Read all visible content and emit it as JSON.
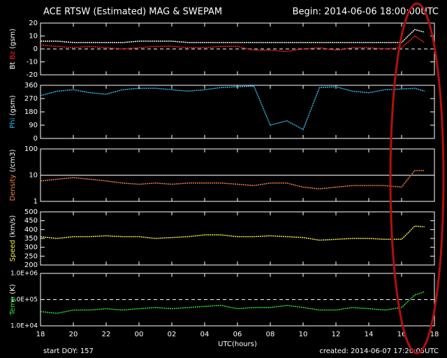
{
  "header": {
    "title": "ACE RTSW (Estimated) MAG & SWEPAM",
    "begin": "Begin: 2014-06-06 18:00:00UTC"
  },
  "footer": {
    "start": "start DOY: 157",
    "created": "created: 2014-06-07 17:20:05UTC"
  },
  "chart_data": [
    {
      "type": "line",
      "ylabel": "(gsm)",
      "x": [
        18,
        19,
        20,
        21,
        22,
        23,
        24,
        25,
        26,
        27,
        28,
        29,
        30,
        31,
        32,
        33,
        34,
        35,
        36,
        37,
        38,
        39,
        40,
        40.8,
        41.4
      ],
      "series": [
        {
          "name": "Bt",
          "color": "#ffffff",
          "values": [
            6,
            6,
            5,
            5,
            5,
            5,
            6,
            6,
            6,
            5,
            5,
            5,
            5,
            5,
            5,
            5,
            5,
            5,
            5,
            5,
            5,
            5,
            5,
            15,
            13
          ]
        },
        {
          "name": "Bz",
          "color": "#ff2020",
          "values": [
            3,
            2,
            1,
            2,
            1,
            0,
            1,
            2,
            2,
            1,
            1,
            2,
            2,
            -1,
            -1,
            -2,
            0,
            1,
            -1,
            1,
            1,
            0,
            1,
            10,
            5
          ]
        }
      ],
      "xlim": [
        18,
        42
      ],
      "xticks": [
        18,
        20,
        22,
        {
          "value": 24,
          "label": "00"
        },
        {
          "value": 26,
          "label": "02"
        },
        {
          "value": 28,
          "label": "04"
        },
        {
          "value": 30,
          "label": "06"
        },
        {
          "value": 32,
          "label": "08"
        },
        {
          "value": 34,
          "label": "10"
        },
        {
          "value": 36,
          "label": "12"
        },
        {
          "value": 38,
          "label": "14"
        },
        {
          "value": 40,
          "label": "16"
        },
        {
          "value": 42,
          "label": "18"
        }
      ],
      "ylim": [
        -20,
        20
      ],
      "yticks": [
        -20,
        -10,
        0,
        10,
        20
      ],
      "reference_line": {
        "value": 0,
        "style": "dashed"
      }
    },
    {
      "type": "line",
      "ylabel": "(gsm)",
      "x": [
        18,
        19,
        20,
        21,
        22,
        23,
        24,
        25,
        26,
        27,
        28,
        29,
        30,
        31,
        32,
        33,
        34,
        35,
        36,
        37,
        38,
        39,
        40,
        40.8,
        41.4
      ],
      "series": [
        {
          "name": "Phi",
          "color": "#30b8e8",
          "values": [
            290,
            320,
            330,
            310,
            300,
            330,
            340,
            340,
            330,
            320,
            330,
            345,
            350,
            355,
            90,
            120,
            60,
            345,
            350,
            320,
            310,
            330,
            335,
            340,
            320
          ]
        }
      ],
      "xlim": [
        18,
        42
      ],
      "xticks": [
        18,
        20,
        22,
        {
          "value": 24,
          "label": "00"
        },
        {
          "value": 26,
          "label": "02"
        },
        {
          "value": 28,
          "label": "04"
        },
        {
          "value": 30,
          "label": "06"
        },
        {
          "value": 32,
          "label": "08"
        },
        {
          "value": 34,
          "label": "10"
        },
        {
          "value": 36,
          "label": "12"
        },
        {
          "value": 38,
          "label": "14"
        },
        {
          "value": 40,
          "label": "16"
        },
        {
          "value": 42,
          "label": "18"
        }
      ],
      "ylim": [
        0,
        360
      ],
      "yticks": [
        0,
        90,
        180,
        270,
        360
      ]
    },
    {
      "type": "line",
      "ylabel": "(/cm3)",
      "log": true,
      "x": [
        18,
        19,
        20,
        21,
        22,
        23,
        24,
        25,
        26,
        27,
        28,
        29,
        30,
        31,
        32,
        33,
        34,
        35,
        36,
        37,
        38,
        39,
        40,
        40.8,
        41.4
      ],
      "series": [
        {
          "name": "Density",
          "color": "#f08040",
          "values": [
            6,
            7,
            8,
            7,
            6,
            5,
            4.5,
            5,
            4.5,
            5,
            5,
            5,
            4.5,
            4,
            5,
            5,
            3.5,
            3,
            3.5,
            4,
            4,
            4,
            3.5,
            15,
            15
          ]
        }
      ],
      "xlim": [
        18,
        42
      ],
      "xticks": [
        18,
        20,
        22,
        {
          "value": 24,
          "label": "00"
        },
        {
          "value": 26,
          "label": "02"
        },
        {
          "value": 28,
          "label": "04"
        },
        {
          "value": 30,
          "label": "06"
        },
        {
          "value": 32,
          "label": "08"
        },
        {
          "value": 34,
          "label": "10"
        },
        {
          "value": 36,
          "label": "12"
        },
        {
          "value": 38,
          "label": "14"
        },
        {
          "value": 40,
          "label": "16"
        },
        {
          "value": 42,
          "label": "18"
        }
      ],
      "ylim": [
        1,
        100
      ],
      "yticks": [
        1,
        10,
        100
      ],
      "reference_line": {
        "value": 10,
        "style": "solid"
      }
    },
    {
      "type": "line",
      "ylabel": "(km/s)",
      "x": [
        18,
        19,
        20,
        21,
        22,
        23,
        24,
        25,
        26,
        27,
        28,
        29,
        30,
        31,
        32,
        33,
        34,
        35,
        36,
        37,
        38,
        39,
        40,
        40.8,
        41.4
      ],
      "series": [
        {
          "name": "Speed",
          "color": "#f0f040",
          "values": [
            360,
            350,
            360,
            360,
            365,
            360,
            360,
            350,
            355,
            360,
            370,
            370,
            360,
            360,
            365,
            360,
            355,
            340,
            345,
            350,
            350,
            345,
            345,
            420,
            415
          ]
        }
      ],
      "xlim": [
        18,
        42
      ],
      "xticks": [
        18,
        20,
        22,
        {
          "value": 24,
          "label": "00"
        },
        {
          "value": 26,
          "label": "02"
        },
        {
          "value": 28,
          "label": "04"
        },
        {
          "value": 30,
          "label": "06"
        },
        {
          "value": 32,
          "label": "08"
        },
        {
          "value": 34,
          "label": "10"
        },
        {
          "value": 36,
          "label": "12"
        },
        {
          "value": 38,
          "label": "14"
        },
        {
          "value": 40,
          "label": "16"
        },
        {
          "value": 42,
          "label": "18"
        }
      ],
      "ylim": [
        200,
        500
      ],
      "yticks": [
        200,
        250,
        300,
        350,
        400,
        450,
        500
      ]
    },
    {
      "type": "line",
      "ylabel": "(K)",
      "log": true,
      "xlabel": "UTC(hours)",
      "x": [
        18,
        19,
        20,
        21,
        22,
        23,
        24,
        25,
        26,
        27,
        28,
        29,
        30,
        31,
        32,
        33,
        34,
        35,
        36,
        37,
        38,
        39,
        40,
        40.8,
        41.4
      ],
      "series": [
        {
          "name": "Temp",
          "color": "#30e030",
          "values": [
            35000,
            30000,
            40000,
            40000,
            45000,
            40000,
            45000,
            50000,
            45000,
            50000,
            55000,
            60000,
            45000,
            50000,
            50000,
            60000,
            50000,
            40000,
            40000,
            50000,
            45000,
            40000,
            50000,
            150000,
            200000
          ]
        }
      ],
      "xlim": [
        18,
        42
      ],
      "xticks": [
        18,
        20,
        22,
        {
          "value": 24,
          "label": "00"
        },
        {
          "value": 26,
          "label": "02"
        },
        {
          "value": 28,
          "label": "04"
        },
        {
          "value": 30,
          "label": "06"
        },
        {
          "value": 32,
          "label": "08"
        },
        {
          "value": 34,
          "label": "10"
        },
        {
          "value": 36,
          "label": "12"
        },
        {
          "value": 38,
          "label": "14"
        },
        {
          "value": 40,
          "label": "16"
        },
        {
          "value": 42,
          "label": "18"
        }
      ],
      "ylim": [
        10000,
        1000000
      ],
      "yticks": [
        {
          "value": 10000,
          "label": "1.0E+04"
        },
        {
          "value": 100000,
          "label": "1.0E+05"
        },
        {
          "value": 1000000,
          "label": "1.0E+06"
        }
      ],
      "reference_line": {
        "value": 100000,
        "style": "dashed"
      }
    }
  ]
}
